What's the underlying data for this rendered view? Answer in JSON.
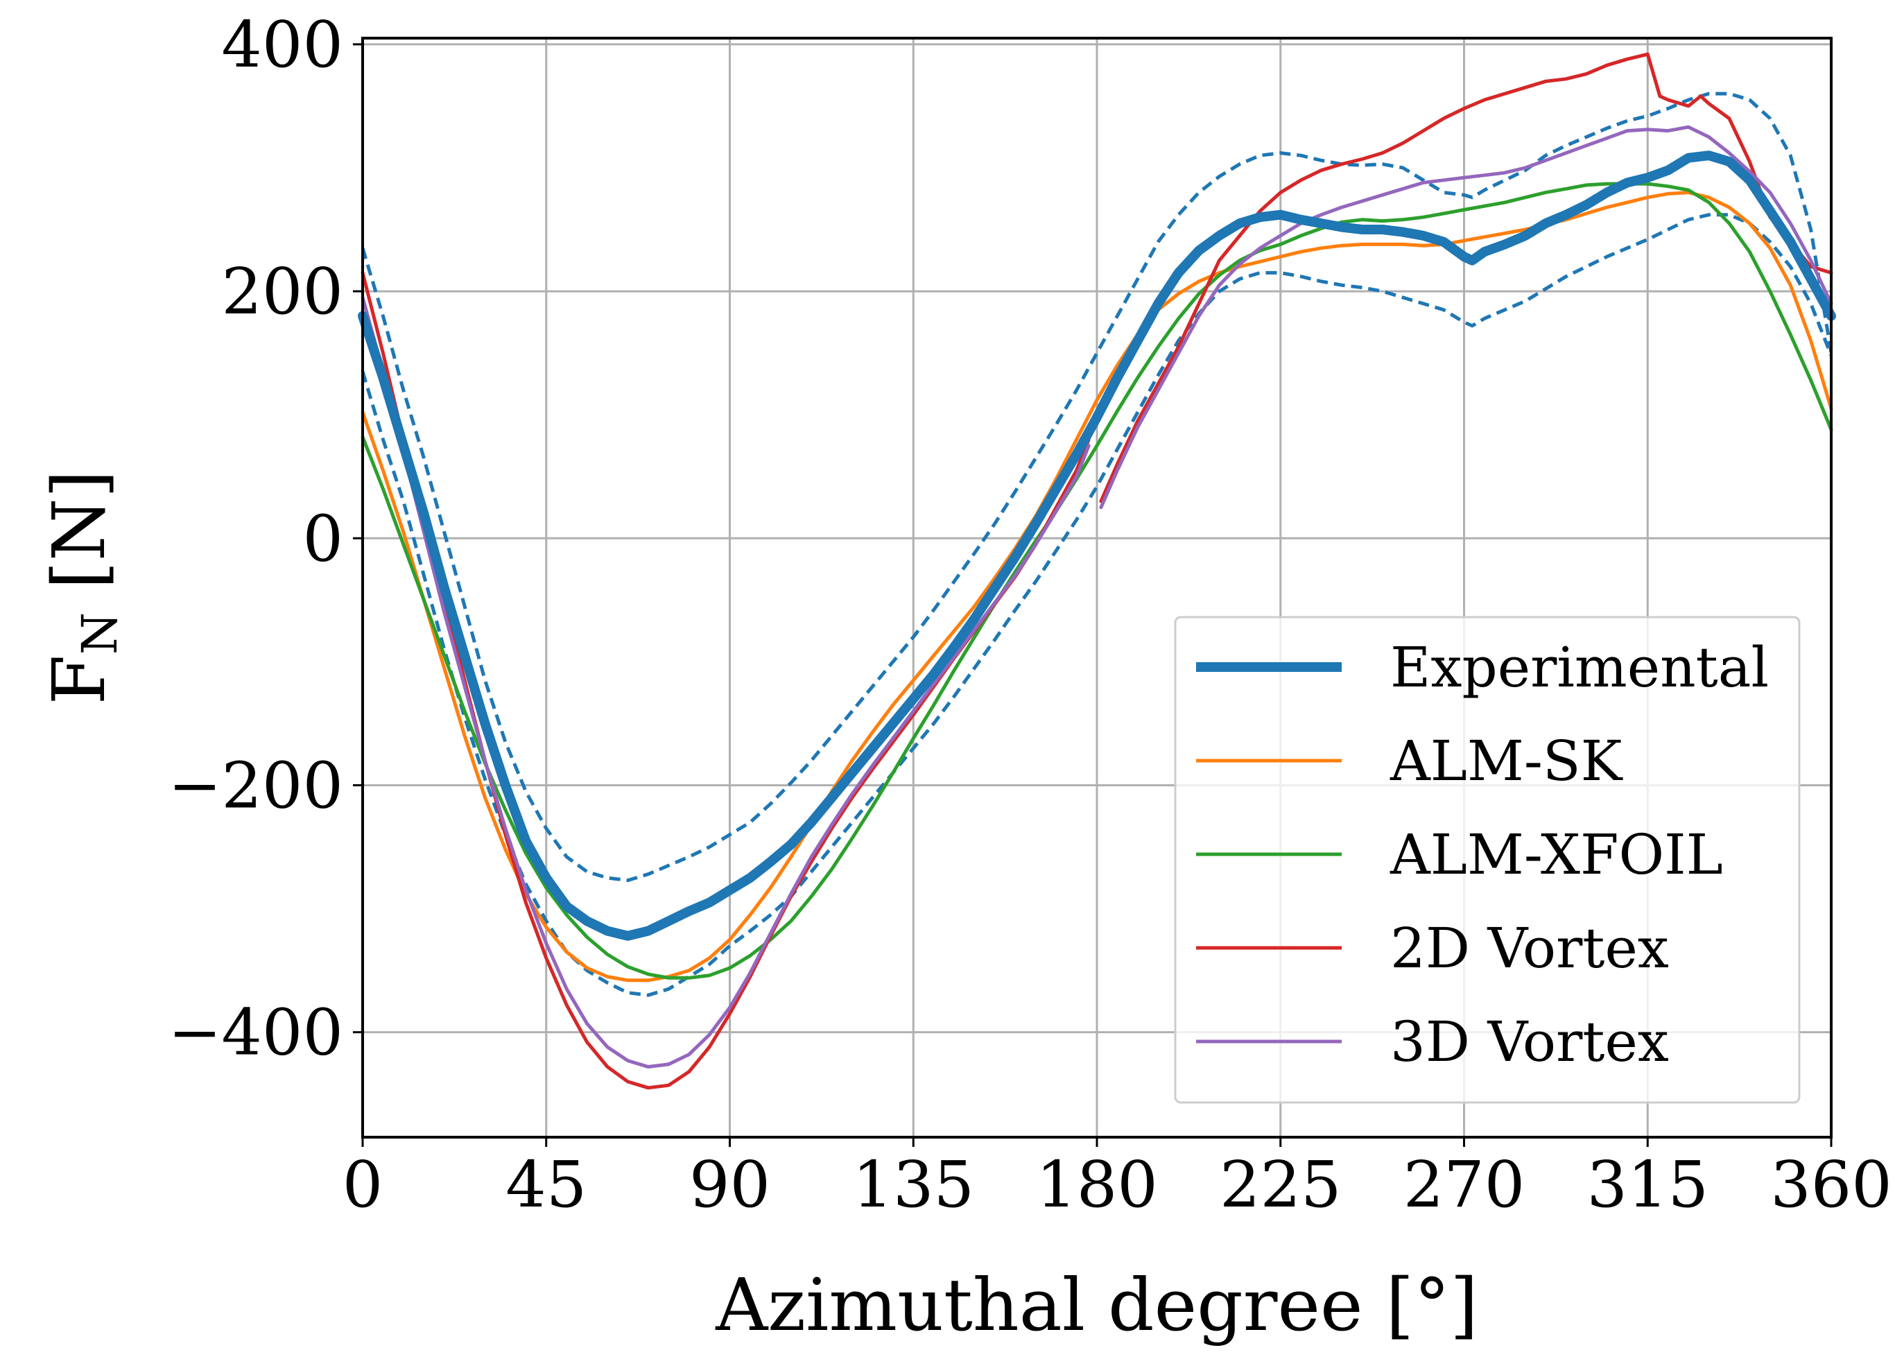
{
  "chart_data": {
    "type": "line",
    "title": "",
    "xlabel": "Azimuthal degree [°]",
    "ylabel_main": "F",
    "ylabel_sub": "N",
    "ylabel_unit": "[N]",
    "xlim": [
      0,
      360
    ],
    "ylim": [
      -485,
      405
    ],
    "grid": true,
    "legend_position": "center-right",
    "xticks": [
      0,
      45,
      90,
      135,
      180,
      225,
      270,
      315,
      360
    ],
    "yticks": [
      -400,
      -200,
      0,
      200,
      400
    ],
    "xtick_labels": [
      "0",
      "45",
      "90",
      "135",
      "180",
      "225",
      "270",
      "315",
      "360"
    ],
    "ytick_labels": [
      "−400",
      "−200",
      "0",
      "200",
      "400"
    ],
    "series": [
      {
        "name": "Experimental",
        "color": "#1f77b4",
        "style": "thick",
        "x": [
          0,
          5,
          10,
          15,
          20,
          25,
          30,
          35,
          40,
          45,
          50,
          55,
          60,
          65,
          70,
          75,
          80,
          85,
          90,
          95,
          100,
          105,
          110,
          115,
          120,
          125,
          130,
          135,
          140,
          145,
          150,
          155,
          160,
          165,
          170,
          175,
          180,
          185,
          190,
          195,
          200,
          205,
          210,
          215,
          220,
          225,
          230,
          235,
          240,
          245,
          250,
          255,
          260,
          265,
          270,
          272,
          275,
          280,
          285,
          290,
          295,
          300,
          305,
          310,
          315,
          320,
          325,
          330,
          335,
          340,
          345,
          350,
          355,
          360
        ],
        "y": [
          180,
          130,
          75,
          20,
          -40,
          -95,
          -150,
          -200,
          -245,
          -275,
          -298,
          -310,
          -318,
          -322,
          -318,
          -310,
          -302,
          -295,
          -285,
          -275,
          -262,
          -248,
          -230,
          -210,
          -190,
          -170,
          -150,
          -130,
          -110,
          -88,
          -65,
          -40,
          -15,
          12,
          40,
          68,
          98,
          130,
          160,
          190,
          215,
          233,
          245,
          255,
          260,
          262,
          258,
          255,
          252,
          250,
          250,
          248,
          245,
          240,
          228,
          225,
          232,
          238,
          245,
          255,
          262,
          270,
          280,
          288,
          292,
          298,
          308,
          310,
          305,
          290,
          265,
          240,
          210,
          180
        ]
      },
      {
        "name": "Experimental (upper)",
        "color": "#1f77b4",
        "style": "dashed",
        "legend": false,
        "x": [
          0,
          5,
          10,
          15,
          20,
          25,
          30,
          35,
          40,
          45,
          50,
          55,
          60,
          65,
          70,
          75,
          80,
          85,
          90,
          95,
          100,
          105,
          110,
          115,
          120,
          125,
          130,
          135,
          140,
          145,
          150,
          155,
          160,
          165,
          170,
          175,
          180,
          185,
          190,
          195,
          200,
          205,
          210,
          215,
          220,
          225,
          230,
          235,
          240,
          245,
          250,
          255,
          260,
          265,
          270,
          272,
          275,
          280,
          285,
          290,
          295,
          300,
          305,
          310,
          315,
          320,
          325,
          330,
          335,
          340,
          345,
          350,
          355,
          360
        ],
        "y": [
          235,
          180,
          120,
          65,
          5,
          -55,
          -115,
          -165,
          -205,
          -235,
          -258,
          -270,
          -275,
          -277,
          -272,
          -265,
          -258,
          -250,
          -240,
          -230,
          -215,
          -198,
          -180,
          -160,
          -140,
          -120,
          -100,
          -80,
          -58,
          -35,
          -12,
          12,
          38,
          65,
          92,
          120,
          150,
          180,
          210,
          240,
          262,
          280,
          293,
          303,
          310,
          312,
          310,
          306,
          303,
          302,
          303,
          300,
          290,
          280,
          278,
          276,
          282,
          290,
          298,
          310,
          318,
          325,
          332,
          338,
          342,
          348,
          355,
          360,
          360,
          355,
          340,
          310,
          250,
          150
        ]
      },
      {
        "name": "Experimental (lower)",
        "color": "#1f77b4",
        "style": "dashed",
        "legend": false,
        "x": [
          0,
          5,
          10,
          15,
          20,
          25,
          30,
          35,
          40,
          45,
          50,
          55,
          60,
          65,
          70,
          75,
          80,
          85,
          90,
          95,
          100,
          105,
          110,
          115,
          120,
          125,
          130,
          135,
          140,
          145,
          150,
          155,
          160,
          165,
          170,
          175,
          180,
          185,
          190,
          195,
          200,
          205,
          210,
          215,
          220,
          225,
          230,
          235,
          240,
          245,
          250,
          255,
          260,
          265,
          270,
          272,
          275,
          280,
          285,
          290,
          295,
          300,
          305,
          310,
          315,
          320,
          325,
          330,
          335,
          340,
          345,
          350,
          355,
          360
        ],
        "y": [
          135,
          80,
          30,
          -30,
          -90,
          -145,
          -195,
          -240,
          -280,
          -310,
          -335,
          -350,
          -360,
          -368,
          -370,
          -365,
          -355,
          -345,
          -330,
          -318,
          -305,
          -290,
          -270,
          -250,
          -230,
          -210,
          -190,
          -170,
          -150,
          -128,
          -105,
          -82,
          -58,
          -35,
          -10,
          15,
          42,
          72,
          102,
          132,
          160,
          182,
          200,
          210,
          215,
          215,
          212,
          208,
          205,
          203,
          200,
          195,
          190,
          185,
          175,
          172,
          178,
          185,
          192,
          202,
          212,
          220,
          228,
          235,
          242,
          250,
          258,
          262,
          262,
          255,
          240,
          220,
          190,
          148
        ]
      },
      {
        "name": "ALM-SK",
        "color": "#ff7f0e",
        "style": "solid",
        "x": [
          0,
          5,
          10,
          15,
          20,
          25,
          30,
          35,
          40,
          45,
          50,
          55,
          60,
          65,
          70,
          75,
          80,
          85,
          90,
          95,
          100,
          105,
          110,
          115,
          120,
          125,
          130,
          135,
          140,
          145,
          150,
          155,
          160,
          165,
          170,
          175,
          180,
          185,
          190,
          195,
          200,
          205,
          210,
          215,
          220,
          225,
          230,
          235,
          240,
          245,
          250,
          255,
          260,
          265,
          270,
          275,
          280,
          285,
          290,
          295,
          300,
          305,
          310,
          315,
          320,
          325,
          330,
          335,
          340,
          345,
          350,
          355,
          360
        ],
        "y": [
          102,
          55,
          5,
          -50,
          -105,
          -160,
          -210,
          -252,
          -288,
          -315,
          -335,
          -348,
          -355,
          -358,
          -358,
          -355,
          -350,
          -340,
          -325,
          -305,
          -283,
          -258,
          -232,
          -205,
          -180,
          -157,
          -135,
          -115,
          -95,
          -75,
          -55,
          -32,
          -8,
          18,
          48,
          80,
          112,
          140,
          165,
          185,
          198,
          208,
          215,
          220,
          224,
          228,
          232,
          235,
          237,
          238,
          238,
          238,
          237,
          238,
          241,
          244,
          247,
          250,
          254,
          258,
          263,
          268,
          272,
          276,
          279,
          280,
          276,
          268,
          255,
          235,
          205,
          160,
          105
        ]
      },
      {
        "name": "ALM-XFOIL",
        "color": "#2ca02c",
        "style": "solid",
        "x": [
          0,
          5,
          10,
          15,
          20,
          25,
          30,
          35,
          40,
          45,
          50,
          55,
          60,
          65,
          70,
          75,
          80,
          85,
          90,
          95,
          100,
          105,
          110,
          115,
          120,
          125,
          130,
          135,
          140,
          145,
          150,
          155,
          160,
          165,
          170,
          175,
          180,
          185,
          190,
          195,
          200,
          205,
          210,
          215,
          220,
          225,
          230,
          235,
          240,
          245,
          250,
          255,
          260,
          265,
          270,
          275,
          280,
          285,
          290,
          295,
          300,
          305,
          310,
          315,
          320,
          325,
          330,
          335,
          340,
          345,
          350,
          355,
          360
        ],
        "y": [
          82,
          40,
          -5,
          -50,
          -95,
          -140,
          -182,
          -220,
          -255,
          -283,
          -305,
          -323,
          -337,
          -347,
          -353,
          -356,
          -356,
          -354,
          -348,
          -338,
          -325,
          -310,
          -290,
          -268,
          -243,
          -217,
          -190,
          -162,
          -135,
          -107,
          -80,
          -53,
          -27,
          -2,
          22,
          48,
          75,
          103,
          130,
          155,
          178,
          198,
          213,
          225,
          233,
          238,
          245,
          251,
          256,
          258,
          257,
          258,
          260,
          263,
          266,
          269,
          272,
          276,
          280,
          283,
          286,
          287,
          287,
          287,
          285,
          282,
          272,
          255,
          232,
          200,
          165,
          128,
          88
        ]
      },
      {
        "name": "2D Vortex",
        "color": "#d62728",
        "style": "solid",
        "x": [
          0,
          5,
          10,
          15,
          20,
          25,
          30,
          35,
          40,
          45,
          50,
          55,
          60,
          65,
          70,
          75,
          80,
          85,
          90,
          95,
          100,
          105,
          110,
          115,
          120,
          125,
          130,
          135,
          140,
          145,
          150,
          155,
          160,
          165,
          170,
          175,
          178,
          null,
          181,
          185,
          190,
          195,
          200,
          205,
          210,
          215,
          220,
          225,
          230,
          235,
          240,
          245,
          250,
          255,
          260,
          265,
          270,
          275,
          280,
          285,
          290,
          295,
          300,
          305,
          310,
          315,
          318,
          320,
          325,
          328,
          330,
          335,
          340,
          345,
          350,
          355,
          360
        ],
        "y": [
          215,
          150,
          80,
          15,
          -50,
          -115,
          -180,
          -240,
          -295,
          -340,
          -378,
          -408,
          -428,
          -440,
          -445,
          -443,
          -432,
          -412,
          -385,
          -355,
          -322,
          -290,
          -262,
          -235,
          -210,
          -187,
          -165,
          -143,
          -120,
          -97,
          -75,
          -53,
          -31,
          -5,
          25,
          55,
          80,
          null,
          30,
          60,
          95,
          125,
          155,
          190,
          225,
          245,
          265,
          280,
          290,
          298,
          303,
          307,
          312,
          320,
          330,
          340,
          348,
          355,
          360,
          365,
          370,
          372,
          376,
          383,
          388,
          392,
          358,
          355,
          350,
          358,
          352,
          340,
          305,
          260,
          240,
          220,
          215
        ]
      },
      {
        "name": "3D Vortex",
        "color": "#9467bd",
        "style": "solid",
        "x": [
          0,
          5,
          10,
          15,
          20,
          25,
          30,
          35,
          40,
          45,
          50,
          55,
          60,
          65,
          70,
          75,
          80,
          85,
          90,
          95,
          100,
          105,
          110,
          115,
          120,
          125,
          130,
          135,
          140,
          145,
          150,
          155,
          160,
          165,
          170,
          175,
          178,
          null,
          181,
          185,
          190,
          195,
          200,
          205,
          210,
          215,
          220,
          225,
          230,
          235,
          240,
          245,
          250,
          255,
          260,
          265,
          270,
          275,
          280,
          285,
          290,
          295,
          300,
          305,
          310,
          315,
          320,
          325,
          330,
          335,
          340,
          345,
          350,
          355,
          360
        ],
        "y": [
          195,
          135,
          70,
          5,
          -60,
          -120,
          -180,
          -235,
          -285,
          -328,
          -365,
          -393,
          -412,
          -423,
          -428,
          -426,
          -418,
          -402,
          -380,
          -352,
          -320,
          -288,
          -258,
          -232,
          -207,
          -184,
          -162,
          -140,
          -118,
          -96,
          -74,
          -52,
          -30,
          -5,
          22,
          50,
          75,
          null,
          25,
          55,
          90,
          120,
          150,
          180,
          205,
          222,
          235,
          245,
          255,
          262,
          268,
          273,
          278,
          283,
          288,
          290,
          292,
          294,
          296,
          300,
          306,
          312,
          318,
          324,
          330,
          331,
          330,
          333,
          325,
          312,
          297,
          280,
          255,
          225,
          190
        ]
      }
    ]
  }
}
